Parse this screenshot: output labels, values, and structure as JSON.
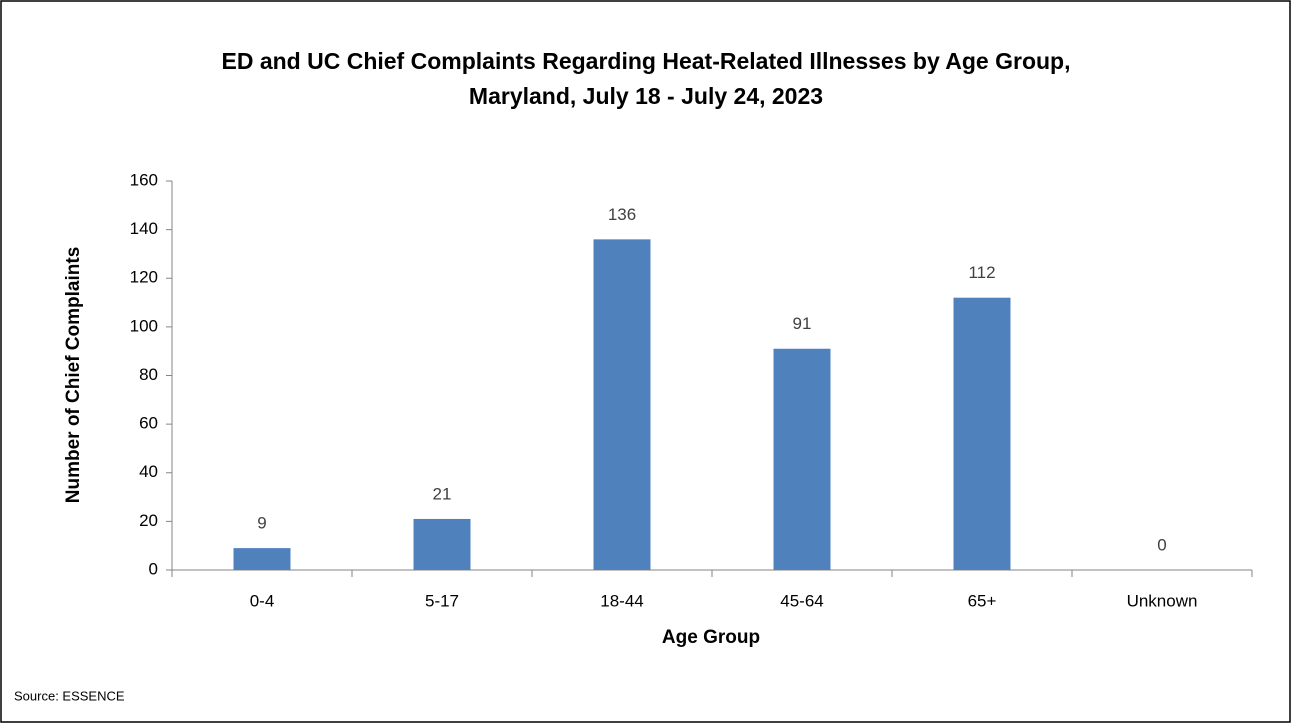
{
  "chart_data": {
    "type": "bar",
    "title": [
      "ED and UC Chief Complaints Regarding Heat-Related Illnesses by Age Group,",
      "Maryland, July 18 - July 24, 2023"
    ],
    "x_label": "Age Group",
    "y_label": "Number of Chief Complaints",
    "source": "Source: ESSENCE",
    "categories": [
      "0-4",
      "5-17",
      "18-44",
      "45-64",
      "65+",
      "Unknown"
    ],
    "values": [
      9,
      21,
      136,
      91,
      112,
      0
    ],
    "color": "#4f81bd",
    "ylim": [
      0,
      160
    ],
    "yticks": [
      0,
      20,
      40,
      60,
      80,
      100,
      120,
      140,
      160
    ],
    "grid": false
  }
}
